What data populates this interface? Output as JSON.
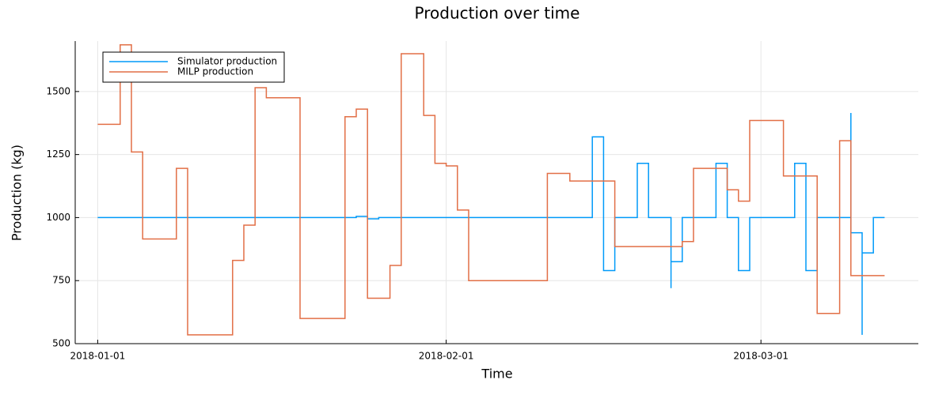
{
  "chart_data": {
    "type": "line",
    "title": "Production over time",
    "xlabel": "Time",
    "ylabel": "Production (kg)",
    "xlim": [
      "2017-12-30",
      "2018-03-15"
    ],
    "ylim": [
      500,
      1700
    ],
    "x_ticks": [
      "2018-01-01",
      "2018-02-01",
      "2018-03-01"
    ],
    "y_ticks": [
      500,
      750,
      1000,
      1250,
      1500
    ],
    "grid": true,
    "legend_position": "top-left",
    "series": [
      {
        "name": "Simulator production",
        "color": "#009AF9",
        "step": true,
        "points": [
          [
            "2018-01-01",
            1000
          ],
          [
            "2018-01-24",
            1000
          ],
          [
            "2018-01-24",
            1005
          ],
          [
            "2018-01-25",
            1005
          ],
          [
            "2018-01-25",
            995
          ],
          [
            "2018-01-26",
            995
          ],
          [
            "2018-01-26",
            1000
          ],
          [
            "2018-02-14",
            1000
          ],
          [
            "2018-02-14",
            1320
          ],
          [
            "2018-02-15",
            1320
          ],
          [
            "2018-02-15",
            790
          ],
          [
            "2018-02-16",
            790
          ],
          [
            "2018-02-16",
            1000
          ],
          [
            "2018-02-18",
            1000
          ],
          [
            "2018-02-18",
            1215
          ],
          [
            "2018-02-19",
            1215
          ],
          [
            "2018-02-19",
            1000
          ],
          [
            "2018-02-21",
            1000
          ],
          [
            "2018-02-21",
            720
          ],
          [
            "2018-02-21",
            720
          ],
          [
            "2018-02-21",
            825
          ],
          [
            "2018-02-22",
            825
          ],
          [
            "2018-02-22",
            1000
          ],
          [
            "2018-02-25",
            1000
          ],
          [
            "2018-02-25",
            1215
          ],
          [
            "2018-02-26",
            1215
          ],
          [
            "2018-02-26",
            1000
          ],
          [
            "2018-02-27",
            1000
          ],
          [
            "2018-02-27",
            790
          ],
          [
            "2018-02-28",
            790
          ],
          [
            "2018-02-28",
            1000
          ],
          [
            "2018-03-04",
            1000
          ],
          [
            "2018-03-04",
            1215
          ],
          [
            "2018-03-05",
            1215
          ],
          [
            "2018-03-05",
            790
          ],
          [
            "2018-03-06",
            790
          ],
          [
            "2018-03-06",
            1000
          ],
          [
            "2018-03-09",
            1000
          ],
          [
            "2018-03-09",
            1415
          ],
          [
            "2018-03-09",
            1415
          ],
          [
            "2018-03-09",
            940
          ],
          [
            "2018-03-10",
            940
          ],
          [
            "2018-03-10",
            535
          ],
          [
            "2018-03-10",
            860
          ],
          [
            "2018-03-11",
            860
          ],
          [
            "2018-03-11",
            1000
          ],
          [
            "2018-03-12",
            1000
          ]
        ]
      },
      {
        "name": "MILP production",
        "color": "#E26F46",
        "step": true,
        "points": [
          [
            "2018-01-01",
            1370
          ],
          [
            "2018-01-03",
            1370
          ],
          [
            "2018-01-03",
            1685
          ],
          [
            "2018-01-04",
            1685
          ],
          [
            "2018-01-04",
            1260
          ],
          [
            "2018-01-05",
            1260
          ],
          [
            "2018-01-05",
            915
          ],
          [
            "2018-01-08",
            915
          ],
          [
            "2018-01-08",
            1195
          ],
          [
            "2018-01-09",
            1195
          ],
          [
            "2018-01-09",
            535
          ],
          [
            "2018-01-13",
            535
          ],
          [
            "2018-01-13",
            820
          ],
          [
            "2018-01-13",
            830
          ],
          [
            "2018-01-14",
            830
          ],
          [
            "2018-01-14",
            970
          ],
          [
            "2018-01-15",
            970
          ],
          [
            "2018-01-15",
            1515
          ],
          [
            "2018-01-16",
            1515
          ],
          [
            "2018-01-16",
            1475
          ],
          [
            "2018-01-19",
            1475
          ],
          [
            "2018-01-19",
            600
          ],
          [
            "2018-01-23",
            600
          ],
          [
            "2018-01-23",
            970
          ],
          [
            "2018-01-23",
            1400
          ],
          [
            "2018-01-24",
            1400
          ],
          [
            "2018-01-24",
            1430
          ],
          [
            "2018-01-25",
            1430
          ],
          [
            "2018-01-25",
            680
          ],
          [
            "2018-01-27",
            680
          ],
          [
            "2018-01-27",
            810
          ],
          [
            "2018-01-28",
            810
          ],
          [
            "2018-01-28",
            1650
          ],
          [
            "2018-01-30",
            1650
          ],
          [
            "2018-01-30",
            1405
          ],
          [
            "2018-01-31",
            1405
          ],
          [
            "2018-01-31",
            1215
          ],
          [
            "2018-02-01",
            1215
          ],
          [
            "2018-02-01",
            1205
          ],
          [
            "2018-02-02",
            1205
          ],
          [
            "2018-02-02",
            1070
          ],
          [
            "2018-02-02",
            1030
          ],
          [
            "2018-02-03",
            1030
          ],
          [
            "2018-02-03",
            750
          ],
          [
            "2018-02-10",
            750
          ],
          [
            "2018-02-10",
            1175
          ],
          [
            "2018-02-12",
            1175
          ],
          [
            "2018-02-12",
            1145
          ],
          [
            "2018-02-16",
            1145
          ],
          [
            "2018-02-16",
            885
          ],
          [
            "2018-02-22",
            885
          ],
          [
            "2018-02-22",
            905
          ],
          [
            "2018-02-23",
            905
          ],
          [
            "2018-02-23",
            1195
          ],
          [
            "2018-02-26",
            1195
          ],
          [
            "2018-02-26",
            1110
          ],
          [
            "2018-02-27",
            1110
          ],
          [
            "2018-02-27",
            1065
          ],
          [
            "2018-02-28",
            1065
          ],
          [
            "2018-02-28",
            1385
          ],
          [
            "2018-03-03",
            1385
          ],
          [
            "2018-03-03",
            1165
          ],
          [
            "2018-03-06",
            1165
          ],
          [
            "2018-03-06",
            620
          ],
          [
            "2018-03-08",
            620
          ],
          [
            "2018-03-08",
            625
          ],
          [
            "2018-03-08",
            1165
          ],
          [
            "2018-03-08",
            1305
          ],
          [
            "2018-03-09",
            1305
          ],
          [
            "2018-03-09",
            770
          ],
          [
            "2018-03-12",
            770
          ]
        ]
      }
    ]
  }
}
